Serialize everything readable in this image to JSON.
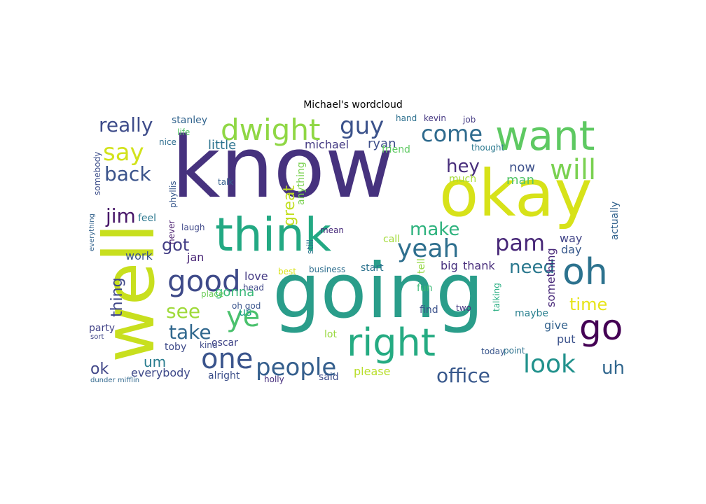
{
  "figure": {
    "title": "Michael's wordcloud"
  },
  "chart_data": {
    "type": "wordcloud",
    "title": "Michael's wordcloud",
    "background": "#ffffff",
    "colormap": "viridis",
    "words": [
      {
        "text": "know",
        "color": "#46327e"
      },
      {
        "text": "well",
        "color": "#c8df1e"
      },
      {
        "text": "going",
        "color": "#2a9d8a"
      },
      {
        "text": "okay",
        "color": "#d7e219"
      },
      {
        "text": "think",
        "color": "#23a983"
      },
      {
        "text": "want",
        "color": "#5ec962"
      },
      {
        "text": "right",
        "color": "#25ab82"
      },
      {
        "text": "oh",
        "color": "#2c728e"
      },
      {
        "text": "go",
        "color": "#440154"
      },
      {
        "text": "one",
        "color": "#3a548c"
      },
      {
        "text": "yeah",
        "color": "#2e6f8e"
      },
      {
        "text": "dwight",
        "color": "#8fd744"
      },
      {
        "text": "good",
        "color": "#3e4a89"
      },
      {
        "text": "ye",
        "color": "#4ac16d"
      },
      {
        "text": "will",
        "color": "#7ad151"
      },
      {
        "text": "people",
        "color": "#355f8d"
      },
      {
        "text": "look",
        "color": "#21918c"
      },
      {
        "text": "come",
        "color": "#2f6b8e"
      },
      {
        "text": "pam",
        "color": "#482878"
      },
      {
        "text": "say",
        "color": "#d2e21b"
      },
      {
        "text": "guy",
        "color": "#3b528b"
      },
      {
        "text": "really",
        "color": "#3e4c8a"
      },
      {
        "text": "back",
        "color": "#3a538b"
      },
      {
        "text": "take",
        "color": "#31688e"
      },
      {
        "text": "see",
        "color": "#9fda3a"
      },
      {
        "text": "make",
        "color": "#2db27d"
      },
      {
        "text": "jim",
        "color": "#481769"
      },
      {
        "text": "office",
        "color": "#38588c"
      },
      {
        "text": "need",
        "color": "#2a788e"
      },
      {
        "text": "time",
        "color": "#e7e419"
      },
      {
        "text": "hey",
        "color": "#472d7b"
      },
      {
        "text": "uh",
        "color": "#31678e"
      },
      {
        "text": "got",
        "color": "#433e85"
      },
      {
        "text": "thing",
        "color": "#3f4788"
      },
      {
        "text": "um",
        "color": "#287c8e"
      },
      {
        "text": "ok",
        "color": "#404688"
      },
      {
        "text": "gonna",
        "color": "#38b977"
      },
      {
        "text": "great",
        "color": "#c2df23"
      },
      {
        "text": "now",
        "color": "#3c508b"
      },
      {
        "text": "man",
        "color": "#54c568"
      },
      {
        "text": "little",
        "color": "#2c738e"
      },
      {
        "text": "michael",
        "color": "#443a83"
      },
      {
        "text": "ryan",
        "color": "#3d4e8a"
      },
      {
        "text": "stanley",
        "color": "#32648e"
      },
      {
        "text": "something",
        "color": "#482979"
      },
      {
        "text": "actually",
        "color": "#33638d"
      },
      {
        "text": "love",
        "color": "#443983"
      },
      {
        "text": "thank",
        "color": "#472c7a"
      },
      {
        "text": "us",
        "color": "#1fa187"
      },
      {
        "text": "work",
        "color": "#3a548c"
      },
      {
        "text": "jan",
        "color": "#482475"
      },
      {
        "text": "day",
        "color": "#38598c"
      },
      {
        "text": "way",
        "color": "#414487"
      },
      {
        "text": "everybody",
        "color": "#3e4989"
      },
      {
        "text": "put",
        "color": "#3b528b"
      },
      {
        "text": "give",
        "color": "#33628d"
      },
      {
        "text": "big",
        "color": "#46307e"
      },
      {
        "text": "please",
        "color": "#b8de29"
      },
      {
        "text": "friend",
        "color": "#5ec962"
      },
      {
        "text": "oscar",
        "color": "#404588"
      },
      {
        "text": "toby",
        "color": "#3e4a89"
      },
      {
        "text": "kevin",
        "color": "#453781"
      },
      {
        "text": "hand",
        "color": "#2d708e"
      },
      {
        "text": "job",
        "color": "#443a83"
      },
      {
        "text": "thought",
        "color": "#2a788e"
      },
      {
        "text": "much",
        "color": "#a5db36"
      },
      {
        "text": "talk",
        "color": "#35608d"
      },
      {
        "text": "feel",
        "color": "#2a768e"
      },
      {
        "text": "laugh",
        "color": "#3f4889"
      },
      {
        "text": "business",
        "color": "#2e6e8e"
      },
      {
        "text": "start",
        "color": "#2c728e"
      },
      {
        "text": "mean",
        "color": "#472a7a"
      },
      {
        "text": "call",
        "color": "#a2da37"
      },
      {
        "text": "best",
        "color": "#d8e219"
      },
      {
        "text": "head",
        "color": "#3f4788"
      },
      {
        "text": "oh god",
        "color": "#3a548c"
      },
      {
        "text": "party",
        "color": "#414287"
      },
      {
        "text": "alright",
        "color": "#3c4f8a"
      },
      {
        "text": "holly",
        "color": "#472f7d"
      },
      {
        "text": "said",
        "color": "#3d4d8a"
      },
      {
        "text": "today",
        "color": "#39568c"
      },
      {
        "text": "point",
        "color": "#2d718e"
      },
      {
        "text": "maybe",
        "color": "#277f8e"
      },
      {
        "text": "two",
        "color": "#453882"
      },
      {
        "text": "find",
        "color": "#3b528b"
      },
      {
        "text": "fun",
        "color": "#3aba76"
      },
      {
        "text": "lot",
        "color": "#98d83e"
      },
      {
        "text": "anything",
        "color": "#7ad151"
      },
      {
        "text": "nice",
        "color": "#2e6d8e"
      },
      {
        "text": "life",
        "color": "#56c667"
      },
      {
        "text": "never",
        "color": "#481b6d"
      },
      {
        "text": "phyllis",
        "color": "#38588c"
      },
      {
        "text": "somebody",
        "color": "#3d4e8a"
      },
      {
        "text": "everything",
        "color": "#33638d"
      },
      {
        "text": "kind",
        "color": "#3e4a89"
      },
      {
        "text": "place",
        "color": "#6ccd5a"
      },
      {
        "text": "tell",
        "color": "#93d741"
      },
      {
        "text": "still",
        "color": "#2b748e"
      },
      {
        "text": "talking",
        "color": "#27ad81"
      },
      {
        "text": "dunder mifflin",
        "color": "#31688e"
      },
      {
        "text": "sort",
        "color": "#404688"
      }
    ]
  }
}
